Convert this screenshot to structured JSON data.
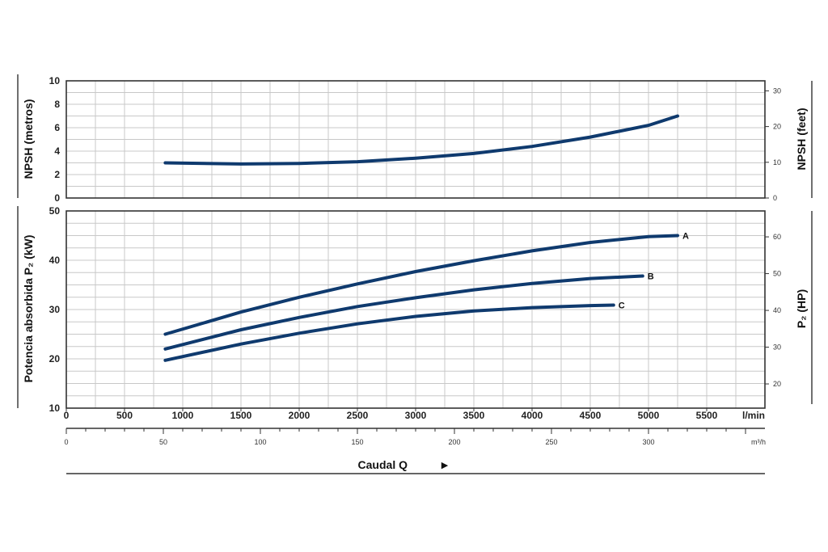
{
  "chart_data": [
    {
      "type": "line",
      "panel": "npsh",
      "ylabel_left": "NPSH (metros)",
      "ylabel_right": "NPSH (feet)",
      "xlim": [
        0,
        6000
      ],
      "ylim": [
        0,
        10
      ],
      "y_ticks_left": [
        "0",
        "2",
        "4",
        "6",
        "8",
        "10"
      ],
      "y_ticks_right": [
        "0",
        "10",
        "20",
        "30"
      ],
      "grid": true,
      "series": [
        {
          "x": [
            850,
            1500,
            2000,
            2500,
            3000,
            3500,
            4000,
            4500,
            5000,
            5250
          ],
          "values": [
            3.0,
            2.9,
            2.95,
            3.1,
            3.4,
            3.8,
            4.4,
            5.2,
            6.2,
            7.0
          ]
        }
      ]
    },
    {
      "type": "line",
      "panel": "power",
      "ylabel_left": "Potencia absorbida P₂ (kW)",
      "ylabel_right": "P₂ (HP)",
      "xlim": [
        0,
        6000
      ],
      "ylim": [
        10,
        50
      ],
      "y_ticks_left": [
        "10",
        "20",
        "30",
        "40",
        "50"
      ],
      "y_ticks_right": [
        "20",
        "30",
        "40",
        "50",
        "60"
      ],
      "grid": true,
      "series": [
        {
          "name": "A",
          "x": [
            850,
            1500,
            2000,
            2500,
            3000,
            3500,
            4000,
            4500,
            5000,
            5250
          ],
          "values": [
            25.0,
            29.5,
            32.5,
            35.2,
            37.7,
            39.9,
            41.9,
            43.6,
            44.8,
            45.0
          ]
        },
        {
          "name": "B",
          "x": [
            850,
            1500,
            2000,
            2500,
            3000,
            3500,
            4000,
            4500,
            4950
          ],
          "values": [
            22.0,
            25.9,
            28.4,
            30.6,
            32.4,
            34.0,
            35.3,
            36.3,
            36.8
          ]
        },
        {
          "name": "C",
          "x": [
            850,
            1500,
            2000,
            2500,
            3000,
            3500,
            4000,
            4500,
            4700
          ],
          "values": [
            19.7,
            23.0,
            25.2,
            27.1,
            28.6,
            29.7,
            30.4,
            30.8,
            30.9
          ]
        }
      ]
    }
  ],
  "x_axis": {
    "ticks_lmin": [
      "0",
      "500",
      "1000",
      "1500",
      "2000",
      "2500",
      "3000",
      "3500",
      "4000",
      "4500",
      "5000",
      "5500"
    ],
    "unit_lmin": "l/min",
    "ticks_m3h": [
      "0",
      "50",
      "100",
      "150",
      "200",
      "250",
      "300"
    ],
    "unit_m3h": "m³/h",
    "title": "Caudal Q",
    "arrow": "▶"
  },
  "colors": {
    "curve": "#0f3a6e",
    "grid": "#c8c8c8",
    "frame": "#333333"
  }
}
